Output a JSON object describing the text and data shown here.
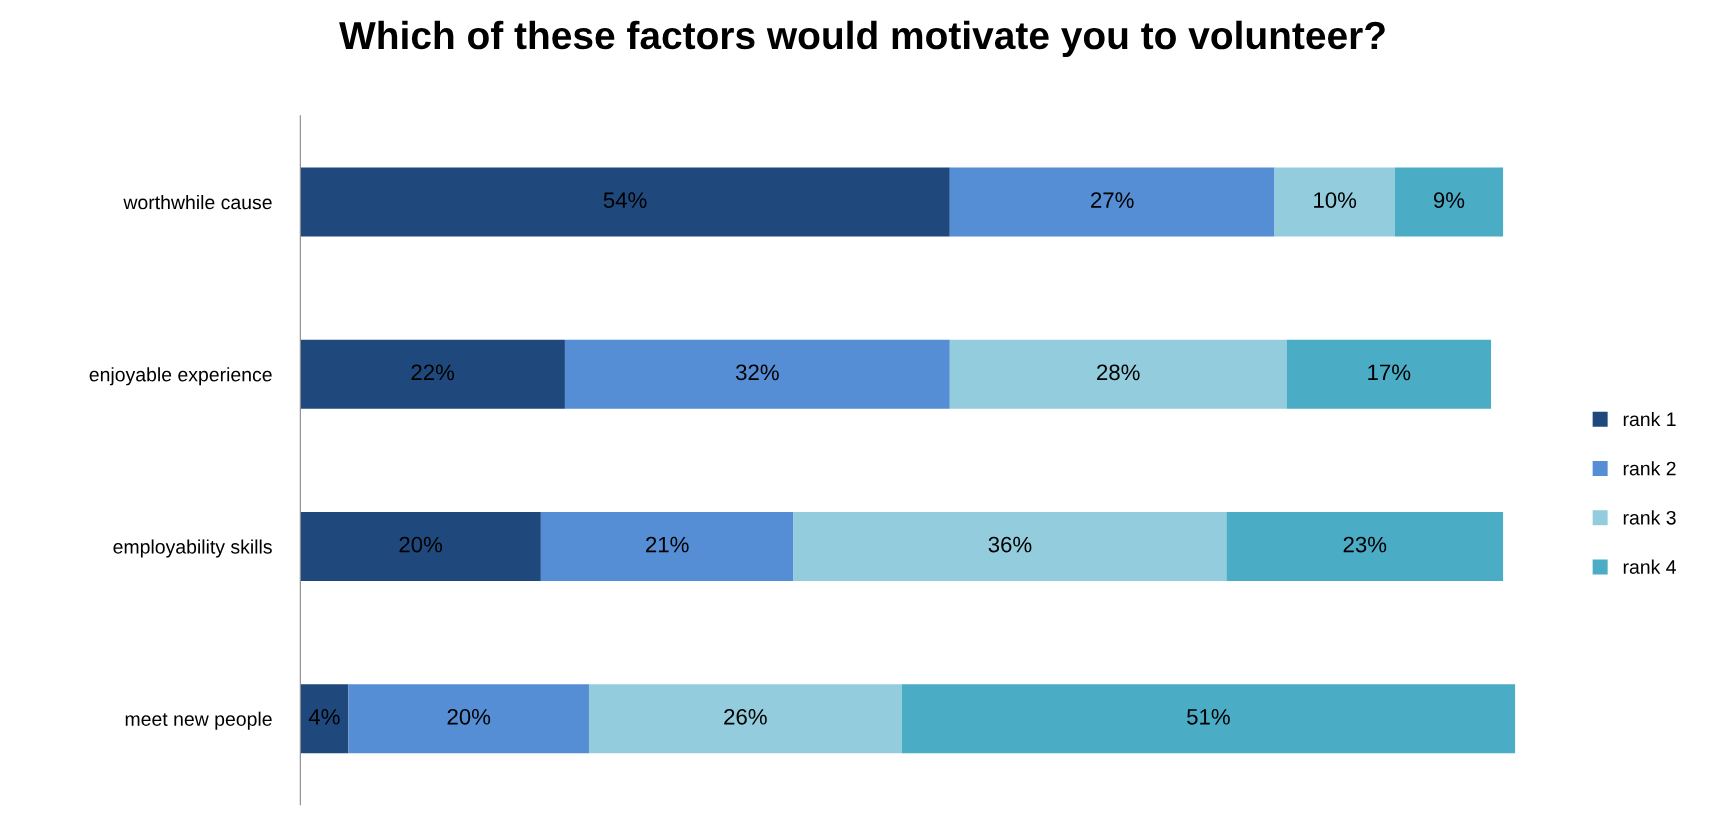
{
  "chart_data": {
    "type": "bar",
    "title": "Which of these factors would motivate you to volunteer?",
    "orientation": "horizontal",
    "stacked": true,
    "legend": "right",
    "grid": false,
    "tick_labels": "y",
    "categories": [
      "worthwhile cause",
      "enjoyable experience",
      "employability skills",
      "meet new people"
    ],
    "series": [
      {
        "name": "rank 1",
        "color": "#1f497d",
        "values": [
          54,
          22,
          20,
          4
        ],
        "value_labels": [
          "54%",
          "22%",
          "20%",
          "4%"
        ]
      },
      {
        "name": "rank 2",
        "color": "#558ed5",
        "values": [
          27,
          32,
          21,
          20
        ],
        "value_labels": [
          "27%",
          "32%",
          "21%",
          "20%"
        ]
      },
      {
        "name": "rank 3",
        "color": "#93cddd",
        "values": [
          10,
          28,
          36,
          26
        ],
        "value_labels": [
          "10%",
          "28%",
          "36%",
          "26%"
        ]
      },
      {
        "name": "rank 4",
        "color": "#4bacc6",
        "values": [
          9,
          17,
          23,
          51
        ],
        "value_labels": [
          "9%",
          "17%",
          "23%",
          "51%"
        ]
      }
    ]
  }
}
